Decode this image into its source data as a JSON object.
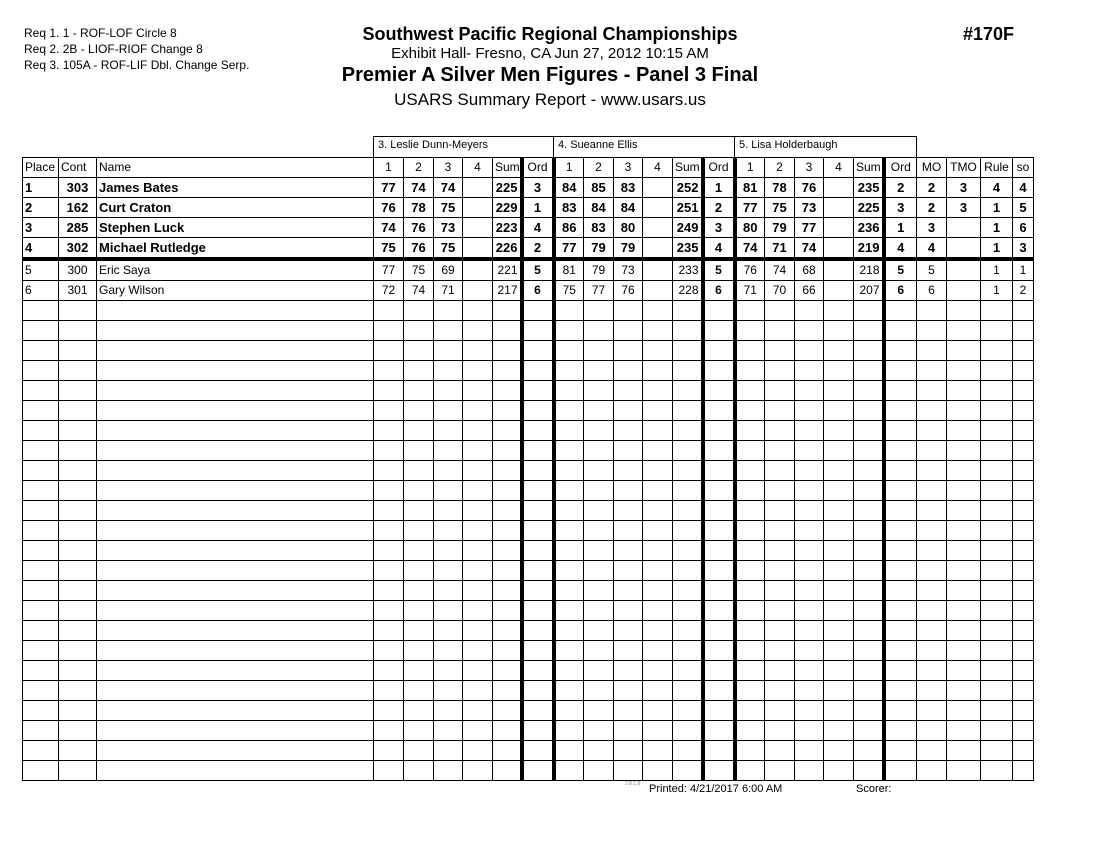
{
  "requirements": [
    "Req  1.  1 - ROF-LOF Circle 8",
    "Req  2.  2B - LIOF-RIOF Change 8",
    "Req  3.  105A - ROF-LIF Dbl. Change Serp."
  ],
  "header": {
    "title": "Southwest Pacific Regional Championships",
    "venue": "Exhibit Hall-  Fresno, CA  Jun 27, 2012  10:15 AM",
    "event": "Premier A Silver Men Figures - Panel 3 Final",
    "report": "USARS Summary Report - www.usars.us",
    "event_number": "#170F"
  },
  "judges": [
    "3.  Leslie Dunn-Meyers",
    "4.  Sueanne Ellis",
    "5.  Lisa Holderbaugh"
  ],
  "columns": {
    "place": "Place",
    "cont": "Cont",
    "name": "Name",
    "scores": [
      "1",
      "2",
      "3",
      "4"
    ],
    "sum": "Sum",
    "ord": "Ord",
    "mo": "MO",
    "tmo": "TMO",
    "rule": "Rule",
    "so": "so"
  },
  "rows": [
    {
      "place": "1",
      "cont": "303",
      "name": "James Bates",
      "bold": true,
      "j": [
        [
          "77",
          "74",
          "74",
          "",
          "225",
          "3"
        ],
        [
          "84",
          "85",
          "83",
          "",
          "252",
          "1"
        ],
        [
          "81",
          "78",
          "76",
          "",
          "235",
          "2"
        ]
      ],
      "mo": "2",
      "tmo": "3",
      "rule": "4",
      "so": "4"
    },
    {
      "place": "2",
      "cont": "162",
      "name": "Curt Craton",
      "bold": true,
      "j": [
        [
          "76",
          "78",
          "75",
          "",
          "229",
          "1"
        ],
        [
          "83",
          "84",
          "84",
          "",
          "251",
          "2"
        ],
        [
          "77",
          "75",
          "73",
          "",
          "225",
          "3"
        ]
      ],
      "mo": "2",
      "tmo": "3",
      "rule": "1",
      "so": "5"
    },
    {
      "place": "3",
      "cont": "285",
      "name": "Stephen Luck",
      "bold": true,
      "j": [
        [
          "74",
          "76",
          "73",
          "",
          "223",
          "4"
        ],
        [
          "86",
          "83",
          "80",
          "",
          "249",
          "3"
        ],
        [
          "80",
          "79",
          "77",
          "",
          "236",
          "1"
        ]
      ],
      "mo": "3",
      "tmo": "",
      "rule": "1",
      "so": "6"
    },
    {
      "place": "4",
      "cont": "302",
      "name": "Michael Rutledge",
      "bold": true,
      "j": [
        [
          "75",
          "76",
          "75",
          "",
          "226",
          "2"
        ],
        [
          "77",
          "79",
          "79",
          "",
          "235",
          "4"
        ],
        [
          "74",
          "71",
          "74",
          "",
          "219",
          "4"
        ]
      ],
      "mo": "4",
      "tmo": "",
      "rule": "1",
      "so": "3"
    },
    {
      "place": "5",
      "cont": "300",
      "name": "Eric Saya",
      "bold": false,
      "j": [
        [
          "77",
          "75",
          "69",
          "",
          "221",
          "5"
        ],
        [
          "81",
          "79",
          "73",
          "",
          "233",
          "5"
        ],
        [
          "76",
          "74",
          "68",
          "",
          "218",
          "5"
        ]
      ],
      "mo": "5",
      "tmo": "",
      "rule": "1",
      "so": "1"
    },
    {
      "place": "6",
      "cont": "301",
      "name": "Gary Wilson",
      "bold": false,
      "j": [
        [
          "72",
          "74",
          "71",
          "",
          "217",
          "6"
        ],
        [
          "75",
          "77",
          "76",
          "",
          "228",
          "6"
        ],
        [
          "71",
          "70",
          "66",
          "",
          "207",
          "6"
        ]
      ],
      "mo": "6",
      "tmo": "",
      "rule": "1",
      "so": "2"
    }
  ],
  "footer": {
    "version": "3.8.1.8",
    "printed": "Printed:  4/21/2017  6:00 AM",
    "scorer": "Scorer:"
  }
}
